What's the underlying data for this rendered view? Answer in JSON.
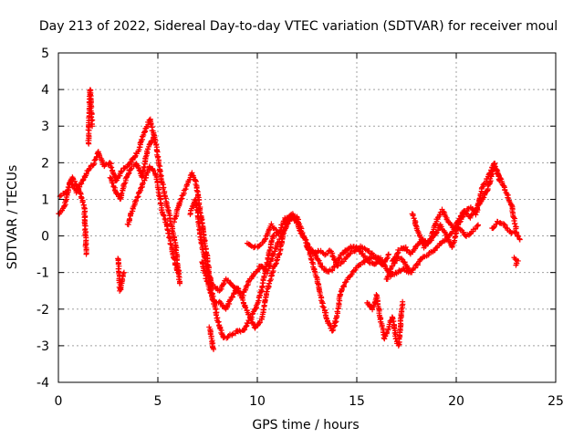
{
  "chart_data": {
    "type": "scatter",
    "title": "Day 213 of 2022, Sidereal Day-to-day VTEC variation (SDTVAR) for receiver moul",
    "xlabel": "GPS time / hours",
    "ylabel": "SDTVAR / TECUs",
    "xlim": [
      0,
      25
    ],
    "ylim": [
      -4,
      5
    ],
    "xticks": [
      "0",
      "5",
      "10",
      "15",
      "20",
      "25"
    ],
    "yticks": [
      "5",
      "4",
      "3",
      "2",
      "1",
      "0",
      "-1",
      "-2",
      "-3",
      "-4"
    ],
    "grid": true,
    "marker": "+",
    "color": "#ff0000",
    "series": [
      {
        "name": "satellite arcs",
        "arcs": [
          [
            [
              0.0,
              0.6
            ],
            [
              0.3,
              0.8
            ],
            [
              0.6,
              1.5
            ],
            [
              0.9,
              1.2
            ],
            [
              1.2,
              1.5
            ],
            [
              1.5,
              1.8
            ],
            [
              1.8,
              2.0
            ],
            [
              2.0,
              2.3
            ],
            [
              2.3,
              1.9
            ],
            [
              2.6,
              2.0
            ],
            [
              2.9,
              1.5
            ],
            [
              3.2,
              1.8
            ],
            [
              3.6,
              2.0
            ],
            [
              4.0,
              2.3
            ],
            [
              4.3,
              2.8
            ],
            [
              4.6,
              3.2
            ],
            [
              4.9,
              2.5
            ],
            [
              5.2,
              1.5
            ],
            [
              5.6,
              0.5
            ],
            [
              5.9,
              -0.3
            ],
            [
              6.1,
              -1.3
            ]
          ],
          [
            [
              0.1,
              1.1
            ],
            [
              0.4,
              1.2
            ],
            [
              0.7,
              1.6
            ],
            [
              1.0,
              1.3
            ],
            [
              1.3,
              0.8
            ],
            [
              1.4,
              -0.5
            ]
          ],
          [
            [
              1.5,
              2.5
            ],
            [
              1.6,
              4.0
            ],
            [
              1.7,
              3.0
            ]
          ],
          [
            [
              2.6,
              1.6
            ],
            [
              2.9,
              1.2
            ],
            [
              3.1,
              1.0
            ],
            [
              3.3,
              1.4
            ],
            [
              3.6,
              1.8
            ],
            [
              3.9,
              2.0
            ],
            [
              4.2,
              1.6
            ],
            [
              4.5,
              2.4
            ],
            [
              4.8,
              2.7
            ]
          ],
          [
            [
              3.0,
              -0.6
            ],
            [
              3.1,
              -1.5
            ],
            [
              3.3,
              -1.0
            ]
          ],
          [
            [
              3.5,
              0.3
            ],
            [
              3.7,
              0.7
            ],
            [
              4.0,
              1.1
            ],
            [
              4.3,
              1.5
            ],
            [
              4.6,
              1.9
            ],
            [
              4.9,
              1.7
            ],
            [
              5.2,
              0.7
            ],
            [
              5.5,
              0.2
            ],
            [
              5.8,
              -0.6
            ],
            [
              6.0,
              -1.0
            ]
          ],
          [
            [
              5.8,
              0.4
            ],
            [
              6.1,
              0.9
            ],
            [
              6.4,
              1.3
            ],
            [
              6.7,
              1.7
            ],
            [
              6.9,
              1.5
            ],
            [
              7.1,
              0.8
            ],
            [
              7.4,
              -0.3
            ],
            [
              7.7,
              -1.5
            ],
            [
              8.0,
              -2.3
            ],
            [
              8.3,
              -2.8
            ],
            [
              8.7,
              -2.7
            ],
            [
              9.0,
              -2.6
            ],
            [
              9.3,
              -2.6
            ],
            [
              9.6,
              -2.3
            ],
            [
              9.9,
              -2.0
            ],
            [
              10.2,
              -1.5
            ],
            [
              10.5,
              -0.7
            ],
            [
              10.8,
              0.0
            ],
            [
              11.1,
              0.1
            ],
            [
              11.4,
              0.5
            ],
            [
              11.7,
              0.5
            ],
            [
              12.0,
              0.4
            ]
          ],
          [
            [
              7.6,
              -2.5
            ],
            [
              7.8,
              -3.1
            ]
          ],
          [
            [
              6.6,
              0.6
            ],
            [
              6.9,
              1.0
            ],
            [
              7.2,
              -0.2
            ],
            [
              7.5,
              -1.0
            ],
            [
              7.8,
              -1.4
            ],
            [
              8.1,
              -1.5
            ],
            [
              8.4,
              -1.2
            ],
            [
              8.7,
              -1.3
            ],
            [
              9.0,
              -1.5
            ],
            [
              9.3,
              -1.6
            ],
            [
              9.6,
              -1.2
            ],
            [
              9.9,
              -1.0
            ],
            [
              10.2,
              -0.8
            ],
            [
              10.5,
              -1.0
            ],
            [
              10.8,
              -0.5
            ],
            [
              11.1,
              -0.1
            ],
            [
              11.4,
              0.2
            ],
            [
              11.7,
              0.5
            ],
            [
              12.0,
              0.5
            ],
            [
              12.3,
              0.0
            ],
            [
              12.6,
              -0.3
            ],
            [
              12.9,
              -0.5
            ],
            [
              13.2,
              -0.8
            ],
            [
              13.5,
              -1.0
            ],
            [
              13.8,
              -0.9
            ],
            [
              14.1,
              -0.6
            ],
            [
              14.4,
              -0.4
            ],
            [
              14.7,
              -0.3
            ],
            [
              15.0,
              -0.3
            ],
            [
              15.3,
              -0.5
            ],
            [
              15.6,
              -0.7
            ],
            [
              15.9,
              -0.8
            ],
            [
              16.2,
              -0.6
            ]
          ],
          [
            [
              7.2,
              -0.7
            ],
            [
              7.5,
              -1.3
            ],
            [
              7.8,
              -1.8
            ],
            [
              8.1,
              -1.8
            ],
            [
              8.4,
              -2.0
            ],
            [
              8.7,
              -1.7
            ],
            [
              9.0,
              -1.4
            ],
            [
              9.3,
              -1.8
            ],
            [
              9.6,
              -2.2
            ],
            [
              9.9,
              -2.5
            ],
            [
              10.2,
              -2.3
            ],
            [
              10.5,
              -1.5
            ],
            [
              10.8,
              -0.9
            ],
            [
              11.1,
              -0.5
            ],
            [
              11.4,
              0.3
            ],
            [
              11.7,
              0.6
            ],
            [
              12.0,
              0.4
            ]
          ],
          [
            [
              9.5,
              -0.2
            ],
            [
              9.8,
              -0.3
            ],
            [
              10.1,
              -0.3
            ],
            [
              10.4,
              -0.1
            ],
            [
              10.7,
              0.3
            ],
            [
              11.0,
              0.1
            ]
          ],
          [
            [
              11.8,
              0.6
            ],
            [
              12.1,
              0.2
            ],
            [
              12.4,
              -0.1
            ],
            [
              12.7,
              -0.6
            ],
            [
              13.0,
              -1.2
            ],
            [
              13.3,
              -1.9
            ],
            [
              13.6,
              -2.4
            ],
            [
              13.8,
              -2.6
            ],
            [
              14.0,
              -2.2
            ],
            [
              14.2,
              -1.5
            ],
            [
              14.5,
              -1.2
            ],
            [
              14.8,
              -1.0
            ],
            [
              15.1,
              -0.8
            ],
            [
              15.4,
              -0.7
            ],
            [
              15.7,
              -0.6
            ],
            [
              16.0,
              -0.6
            ],
            [
              16.3,
              -0.8
            ],
            [
              16.6,
              -0.5
            ]
          ],
          [
            [
              12.5,
              -0.3
            ],
            [
              12.8,
              -0.5
            ],
            [
              13.1,
              -0.4
            ],
            [
              13.4,
              -0.5
            ],
            [
              13.7,
              -0.4
            ],
            [
              14.0,
              -0.8
            ],
            [
              14.3,
              -0.7
            ],
            [
              14.6,
              -0.5
            ],
            [
              14.9,
              -0.4
            ],
            [
              15.2,
              -0.3
            ],
            [
              15.5,
              -0.4
            ],
            [
              15.8,
              -0.5
            ],
            [
              16.1,
              -0.6
            ],
            [
              16.4,
              -0.8
            ],
            [
              16.7,
              -1.1
            ],
            [
              17.0,
              -1.0
            ],
            [
              17.3,
              -0.9
            ],
            [
              17.6,
              -1.0
            ]
          ],
          [
            [
              15.5,
              -1.8
            ],
            [
              15.8,
              -2.0
            ],
            [
              16.0,
              -1.6
            ],
            [
              16.2,
              -2.3
            ],
            [
              16.4,
              -2.8
            ],
            [
              16.6,
              -2.5
            ],
            [
              16.8,
              -2.2
            ],
            [
              17.0,
              -2.9
            ],
            [
              17.1,
              -3.0
            ],
            [
              17.3,
              -1.8
            ]
          ],
          [
            [
              16.5,
              -1.2
            ],
            [
              16.8,
              -0.8
            ],
            [
              17.1,
              -0.6
            ],
            [
              17.4,
              -0.7
            ],
            [
              17.7,
              -1.0
            ],
            [
              18.0,
              -0.8
            ],
            [
              18.3,
              -0.6
            ],
            [
              18.6,
              -0.5
            ],
            [
              18.9,
              -0.4
            ],
            [
              19.2,
              -0.2
            ],
            [
              19.5,
              -0.1
            ],
            [
              19.8,
              0.1
            ],
            [
              20.1,
              0.4
            ],
            [
              20.4,
              0.7
            ],
            [
              20.7,
              0.5
            ],
            [
              21.0,
              0.7
            ],
            [
              21.3,
              1.0
            ],
            [
              21.6,
              1.3
            ],
            [
              21.9,
              1.9
            ],
            [
              22.2,
              1.6
            ],
            [
              22.5,
              1.2
            ],
            [
              22.8,
              0.8
            ],
            [
              23.0,
              0.2
            ]
          ],
          [
            [
              16.8,
              -0.7
            ],
            [
              17.1,
              -0.4
            ],
            [
              17.4,
              -0.3
            ],
            [
              17.7,
              -0.5
            ],
            [
              18.0,
              -0.3
            ],
            [
              18.3,
              -0.1
            ],
            [
              18.6,
              -0.2
            ],
            [
              18.9,
              0.0
            ],
            [
              19.2,
              0.3
            ],
            [
              19.5,
              0.0
            ],
            [
              19.8,
              -0.3
            ],
            [
              20.1,
              0.3
            ],
            [
              20.4,
              0.6
            ],
            [
              20.7,
              0.8
            ],
            [
              21.0,
              0.6
            ],
            [
              21.3,
              1.3
            ],
            [
              21.6,
              1.6
            ],
            [
              21.9,
              2.0
            ],
            [
              22.2,
              1.5
            ]
          ],
          [
            [
              17.8,
              0.6
            ],
            [
              18.1,
              0.1
            ],
            [
              18.4,
              -0.3
            ],
            [
              18.7,
              -0.1
            ],
            [
              19.0,
              0.4
            ],
            [
              19.3,
              0.7
            ],
            [
              19.6,
              0.4
            ],
            [
              19.9,
              0.2
            ],
            [
              20.2,
              0.2
            ],
            [
              20.5,
              0.0
            ],
            [
              20.8,
              0.1
            ],
            [
              21.1,
              0.3
            ]
          ],
          [
            [
              21.8,
              0.2
            ],
            [
              22.1,
              0.4
            ],
            [
              22.4,
              0.3
            ],
            [
              22.7,
              0.1
            ],
            [
              23.0,
              0.1
            ],
            [
              23.2,
              -0.1
            ]
          ],
          [
            [
              22.9,
              -0.6
            ],
            [
              23.1,
              -0.7
            ],
            [
              23.0,
              -0.8
            ]
          ]
        ]
      }
    ]
  }
}
